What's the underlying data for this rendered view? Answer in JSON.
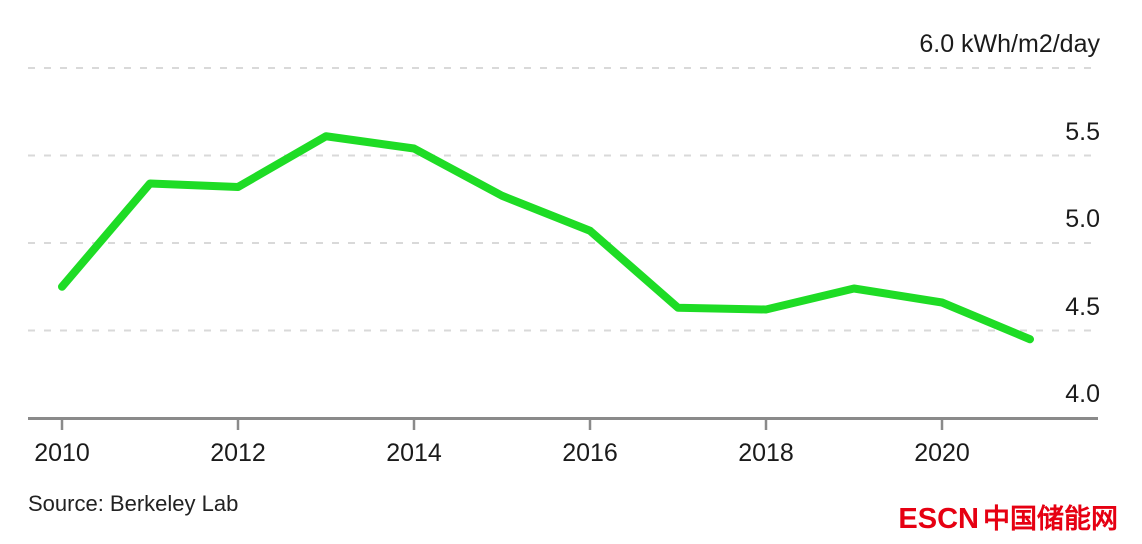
{
  "chart_data": {
    "type": "line",
    "x": [
      2010,
      2011,
      2012,
      2013,
      2014,
      2015,
      2016,
      2017,
      2018,
      2019,
      2020,
      2021
    ],
    "series": [
      {
        "name": "solar-resource-kwh-m2-day",
        "color": "#1edc25",
        "values": [
          4.75,
          5.34,
          5.32,
          5.61,
          5.54,
          5.27,
          5.07,
          4.63,
          4.62,
          4.74,
          4.66,
          4.45
        ]
      }
    ],
    "ylabel": "kWh/m2/day",
    "ylim": [
      4.0,
      6.0
    ],
    "y_ticks": [
      4.0,
      4.5,
      5.0,
      5.5,
      6.0
    ],
    "y_top_tick_label": "6.0 kWh/m2/day",
    "x_ticks": [
      2010,
      2012,
      2014,
      2016,
      2018,
      2020
    ],
    "grid": "horizontal-dashed",
    "legend": "none"
  },
  "source": {
    "text": "Source: Berkeley Lab"
  },
  "branding": {
    "latin": "ESCN",
    "cn": "中国储能网",
    "color": "#e60012"
  },
  "colors": {
    "line_green": "#1edc25",
    "grid": "#d9d9d9",
    "axis": "#8a8a8a",
    "text": "#1b1b1b",
    "logo_red": "#e60012"
  }
}
